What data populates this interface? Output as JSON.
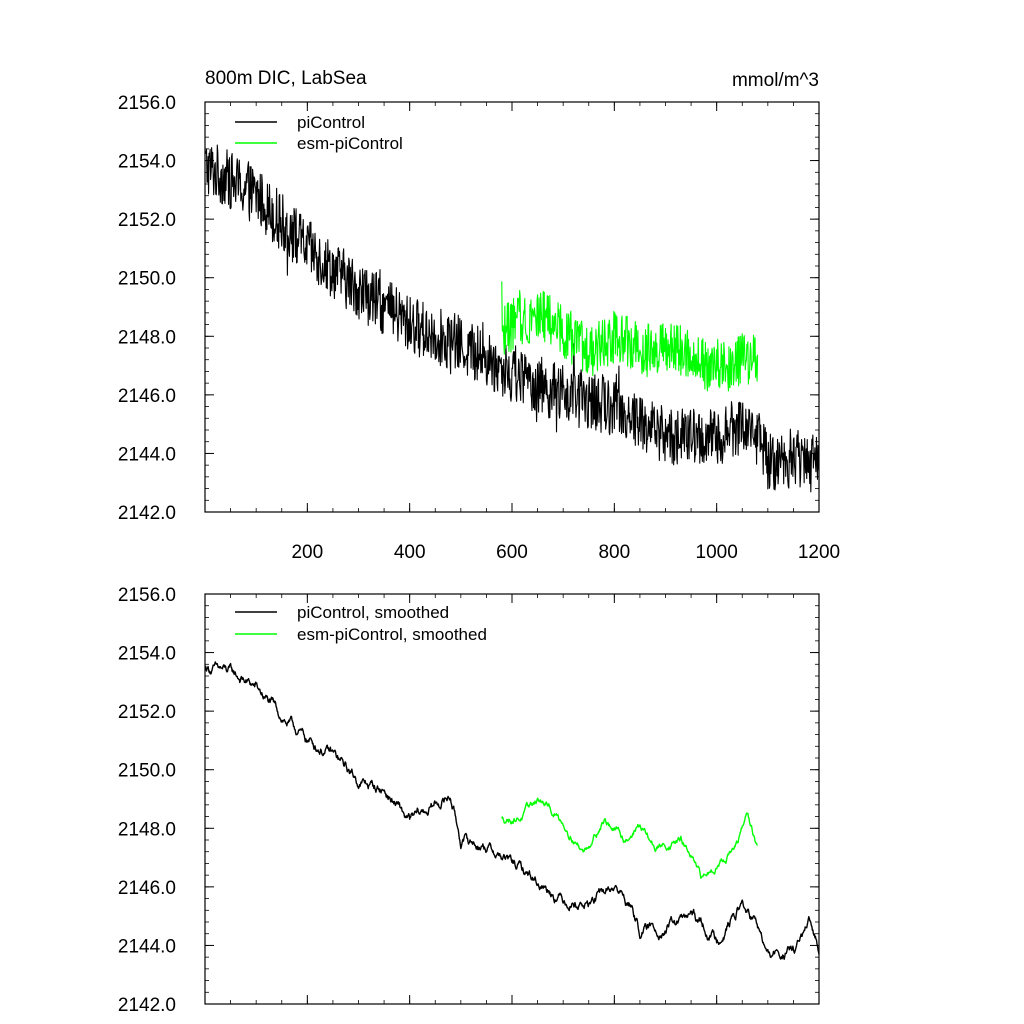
{
  "chart_data": [
    {
      "type": "line",
      "title": "800m DIC, LabSea",
      "units": "mmol/m^3",
      "xlim": [
        0,
        1200
      ],
      "ylim": [
        2142.0,
        2156.0
      ],
      "x_ticks": [
        200,
        400,
        600,
        800,
        1000,
        1200
      ],
      "x_tick_labels": [
        "200",
        "400",
        "600",
        "800",
        "1000",
        "1200"
      ],
      "y_ticks": [
        2142.0,
        2144.0,
        2146.0,
        2148.0,
        2150.0,
        2152.0,
        2154.0,
        2156.0
      ],
      "y_tick_labels": [
        "2142.0",
        "2144.0",
        "2146.0",
        "2148.0",
        "2150.0",
        "2152.0",
        "2154.0",
        "2156.0"
      ],
      "legend_position": "top-left",
      "series": [
        {
          "name": "piControl",
          "color": "#000000",
          "x_range": [
            1,
            1200
          ],
          "trend": [
            [
              1,
              2153.8
            ],
            [
              100,
              2152.8
            ],
            [
              200,
              2151.0
            ],
            [
              300,
              2149.6
            ],
            [
              400,
              2148.4
            ],
            [
              500,
              2147.7
            ],
            [
              600,
              2146.7
            ],
            [
              700,
              2146.0
            ],
            [
              800,
              2145.6
            ],
            [
              900,
              2144.6
            ],
            [
              1000,
              2144.5
            ],
            [
              1050,
              2145.0
            ],
            [
              1080,
              2144.6
            ],
            [
              1100,
              2143.7
            ],
            [
              1150,
              2143.8
            ],
            [
              1200,
              2144.0
            ]
          ],
          "noise_amplitude": 1.0
        },
        {
          "name": "esm-piControl",
          "color": "#00ff00",
          "x_range": [
            580,
            1080
          ],
          "trend": [
            [
              580,
              2148.2
            ],
            [
              650,
              2148.8
            ],
            [
              700,
              2148.2
            ],
            [
              750,
              2147.4
            ],
            [
              800,
              2148.0
            ],
            [
              850,
              2147.6
            ],
            [
              900,
              2147.6
            ],
            [
              950,
              2147.4
            ],
            [
              1000,
              2146.8
            ],
            [
              1050,
              2147.2
            ],
            [
              1080,
              2147.3
            ]
          ],
          "noise_amplitude": 0.9
        }
      ]
    },
    {
      "type": "line",
      "xlim": [
        0,
        1200
      ],
      "ylim": [
        2142.0,
        2156.0
      ],
      "y_ticks": [
        2142.0,
        2144.0,
        2146.0,
        2148.0,
        2150.0,
        2152.0,
        2154.0,
        2156.0
      ],
      "y_tick_labels": [
        "2142.0",
        "2144.0",
        "2146.0",
        "2148.0",
        "2150.0",
        "2152.0",
        "2154.0",
        "2156.0"
      ],
      "legend_position": "top-left",
      "series": [
        {
          "name": "piControl, smoothed",
          "color": "#000000",
          "x_range": [
            1,
            1200
          ],
          "trend": [
            [
              1,
              2153.5
            ],
            [
              50,
              2153.3
            ],
            [
              100,
              2152.8
            ],
            [
              150,
              2151.8
            ],
            [
              200,
              2151.0
            ],
            [
              250,
              2150.5
            ],
            [
              300,
              2149.6
            ],
            [
              350,
              2149.3
            ],
            [
              400,
              2148.2
            ],
            [
              450,
              2148.8
            ],
            [
              480,
              2149.1
            ],
            [
              500,
              2147.6
            ],
            [
              550,
              2147.4
            ],
            [
              600,
              2146.8
            ],
            [
              650,
              2146.2
            ],
            [
              700,
              2145.6
            ],
            [
              750,
              2145.4
            ],
            [
              800,
              2146.0
            ],
            [
              830,
              2145.4
            ],
            [
              850,
              2144.5
            ],
            [
              900,
              2144.6
            ],
            [
              950,
              2145.0
            ],
            [
              1000,
              2144.2
            ],
            [
              1050,
              2145.4
            ],
            [
              1080,
              2144.6
            ],
            [
              1100,
              2143.6
            ],
            [
              1150,
              2143.8
            ],
            [
              1180,
              2144.6
            ],
            [
              1200,
              2143.9
            ]
          ],
          "noise_amplitude": 0.35
        },
        {
          "name": "esm-piControl, smoothed",
          "color": "#00ff00",
          "x_range": [
            580,
            1080
          ],
          "trend": [
            [
              580,
              2148.3
            ],
            [
              620,
              2148.4
            ],
            [
              650,
              2149.0
            ],
            [
              700,
              2148.2
            ],
            [
              740,
              2147.2
            ],
            [
              780,
              2148.3
            ],
            [
              820,
              2147.6
            ],
            [
              850,
              2148.1
            ],
            [
              880,
              2147.3
            ],
            [
              930,
              2147.6
            ],
            [
              950,
              2147.0
            ],
            [
              970,
              2146.2
            ],
            [
              1000,
              2146.8
            ],
            [
              1040,
              2147.4
            ],
            [
              1060,
              2148.5
            ],
            [
              1080,
              2147.3
            ]
          ],
          "noise_amplitude": 0.25
        }
      ]
    }
  ]
}
